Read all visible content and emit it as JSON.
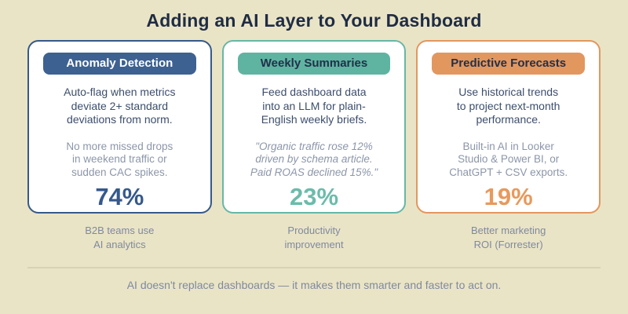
{
  "page": {
    "title": "Adding an AI Layer to Your Dashboard",
    "footer": "AI doesn't replace dashboards — it makes them smarter and faster to act on."
  },
  "colors": {
    "background": "#EAE4C6",
    "title_text": "#1F2C44",
    "card_background": "#FFFFFF",
    "blue_accent": "#3D6191",
    "teal_accent": "#5FB4A1",
    "orange_accent": "#E2975F",
    "body_text": "#3C4E6B",
    "muted_text": "#8C96A9",
    "stat_blue": "#35598C",
    "stat_teal": "#6BBCAA",
    "stat_orange": "#E8995C"
  },
  "cards": [
    {
      "badge": "Anomaly Detection",
      "body_lines": [
        "Auto-flag when metrics",
        "deviate 2+ standard",
        "deviations from norm."
      ],
      "note_lines": [
        "No more missed drops",
        "in weekend traffic or",
        "sudden CAC spikes."
      ],
      "stat": "74%",
      "caption_lines": [
        "B2B teams use",
        "AI analytics"
      ]
    },
    {
      "badge": "Weekly Summaries",
      "body_lines": [
        "Feed dashboard data",
        "into an LLM for plain-",
        "English weekly briefs."
      ],
      "note_lines": [
        "\"Organic traffic rose 12%",
        "driven by schema article.",
        "Paid ROAS declined 15%.\""
      ],
      "stat": "23%",
      "caption_lines": [
        "Productivity",
        "improvement"
      ]
    },
    {
      "badge": "Predictive Forecasts",
      "body_lines": [
        "Use historical trends",
        "to project next-month",
        "performance."
      ],
      "note_lines": [
        "Built-in AI in Looker",
        "Studio & Power BI, or",
        "ChatGPT + CSV exports."
      ],
      "stat": "19%",
      "caption_lines": [
        "Better marketing",
        "ROI (Forrester)"
      ]
    }
  ]
}
